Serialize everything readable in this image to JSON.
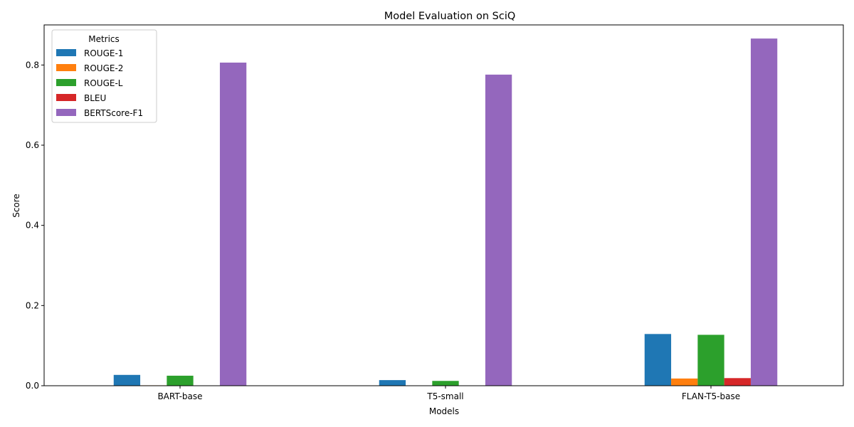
{
  "chart_data": {
    "type": "bar",
    "title": "Model Evaluation on SciQ",
    "xlabel": "Models",
    "ylabel": "Score",
    "categories": [
      "BART-base",
      "T5-small",
      "FLAN-T5-base"
    ],
    "series": [
      {
        "name": "ROUGE-1",
        "color": "#1f77b4",
        "values": [
          0.027,
          0.014,
          0.129
        ]
      },
      {
        "name": "ROUGE-2",
        "color": "#ff7f0e",
        "values": [
          0.001,
          0.0,
          0.018
        ]
      },
      {
        "name": "ROUGE-L",
        "color": "#2ca02c",
        "values": [
          0.025,
          0.012,
          0.127
        ]
      },
      {
        "name": "BLEU",
        "color": "#d62728",
        "values": [
          0.0,
          0.0,
          0.019
        ]
      },
      {
        "name": "BERTScore-F1",
        "color": "#9467bd",
        "values": [
          0.806,
          0.776,
          0.866
        ]
      }
    ],
    "ylim": [
      0,
      0.9
    ],
    "yticks": [
      "0.0",
      "0.2",
      "0.4",
      "0.6",
      "0.8"
    ],
    "legend": {
      "title": "Metrics",
      "placement": "top-left"
    },
    "grid": false
  }
}
